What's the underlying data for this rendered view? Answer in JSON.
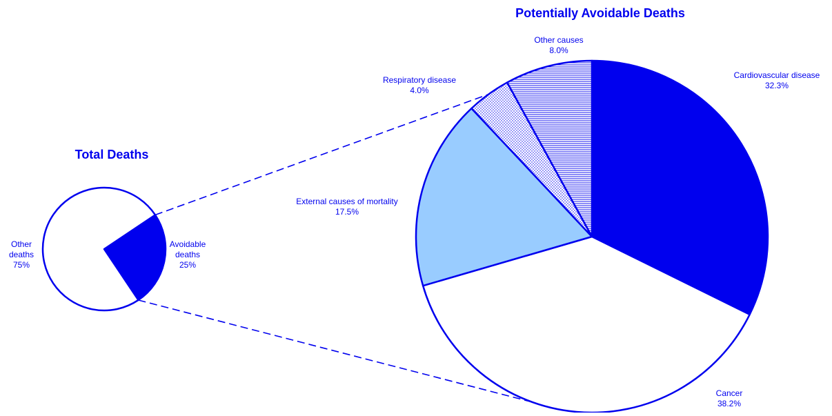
{
  "chart_data": [
    {
      "type": "pie",
      "title": "Total Deaths",
      "colors": {
        "stroke": "#0000ee",
        "text": "#0000ee"
      },
      "slices": [
        {
          "label": "Avoidable deaths",
          "label_lines": [
            "Avoidable",
            "deaths"
          ],
          "value": 25,
          "value_text": "25%",
          "fill": "#0000ee",
          "pattern": "solid"
        },
        {
          "label": "Other deaths",
          "label_lines": [
            "Other",
            "deaths"
          ],
          "value": 75,
          "value_text": "75%",
          "fill": "#ffffff",
          "pattern": "solid"
        }
      ]
    },
    {
      "type": "pie",
      "title": "Potentially Avoidable Deaths",
      "colors": {
        "stroke": "#0000ee",
        "text": "#0000ee"
      },
      "slices": [
        {
          "label": "Cardiovascular disease",
          "label_lines": [
            "Cardiovascular disease"
          ],
          "value": 32.3,
          "value_text": "32.3%",
          "fill": "#0000ee",
          "pattern": "solid"
        },
        {
          "label": "Cancer",
          "label_lines": [
            "Cancer"
          ],
          "value": 38.2,
          "value_text": "38.2%",
          "fill": "#ffffff",
          "pattern": "solid"
        },
        {
          "label": "External causes of mortality",
          "label_lines": [
            "External causes of mortality"
          ],
          "value": 17.5,
          "value_text": "17.5%",
          "fill": "#99ccff",
          "pattern": "solid"
        },
        {
          "label": "Respiratory disease",
          "label_lines": [
            "Respiratory disease"
          ],
          "value": 4.0,
          "value_text": "4.0%",
          "fill": "#ffffff",
          "pattern": "dots"
        },
        {
          "label": "Other causes",
          "label_lines": [
            "Other causes"
          ],
          "value": 8.0,
          "value_text": "8.0%",
          "fill": "#ffffff",
          "pattern": "hlines"
        }
      ]
    }
  ]
}
